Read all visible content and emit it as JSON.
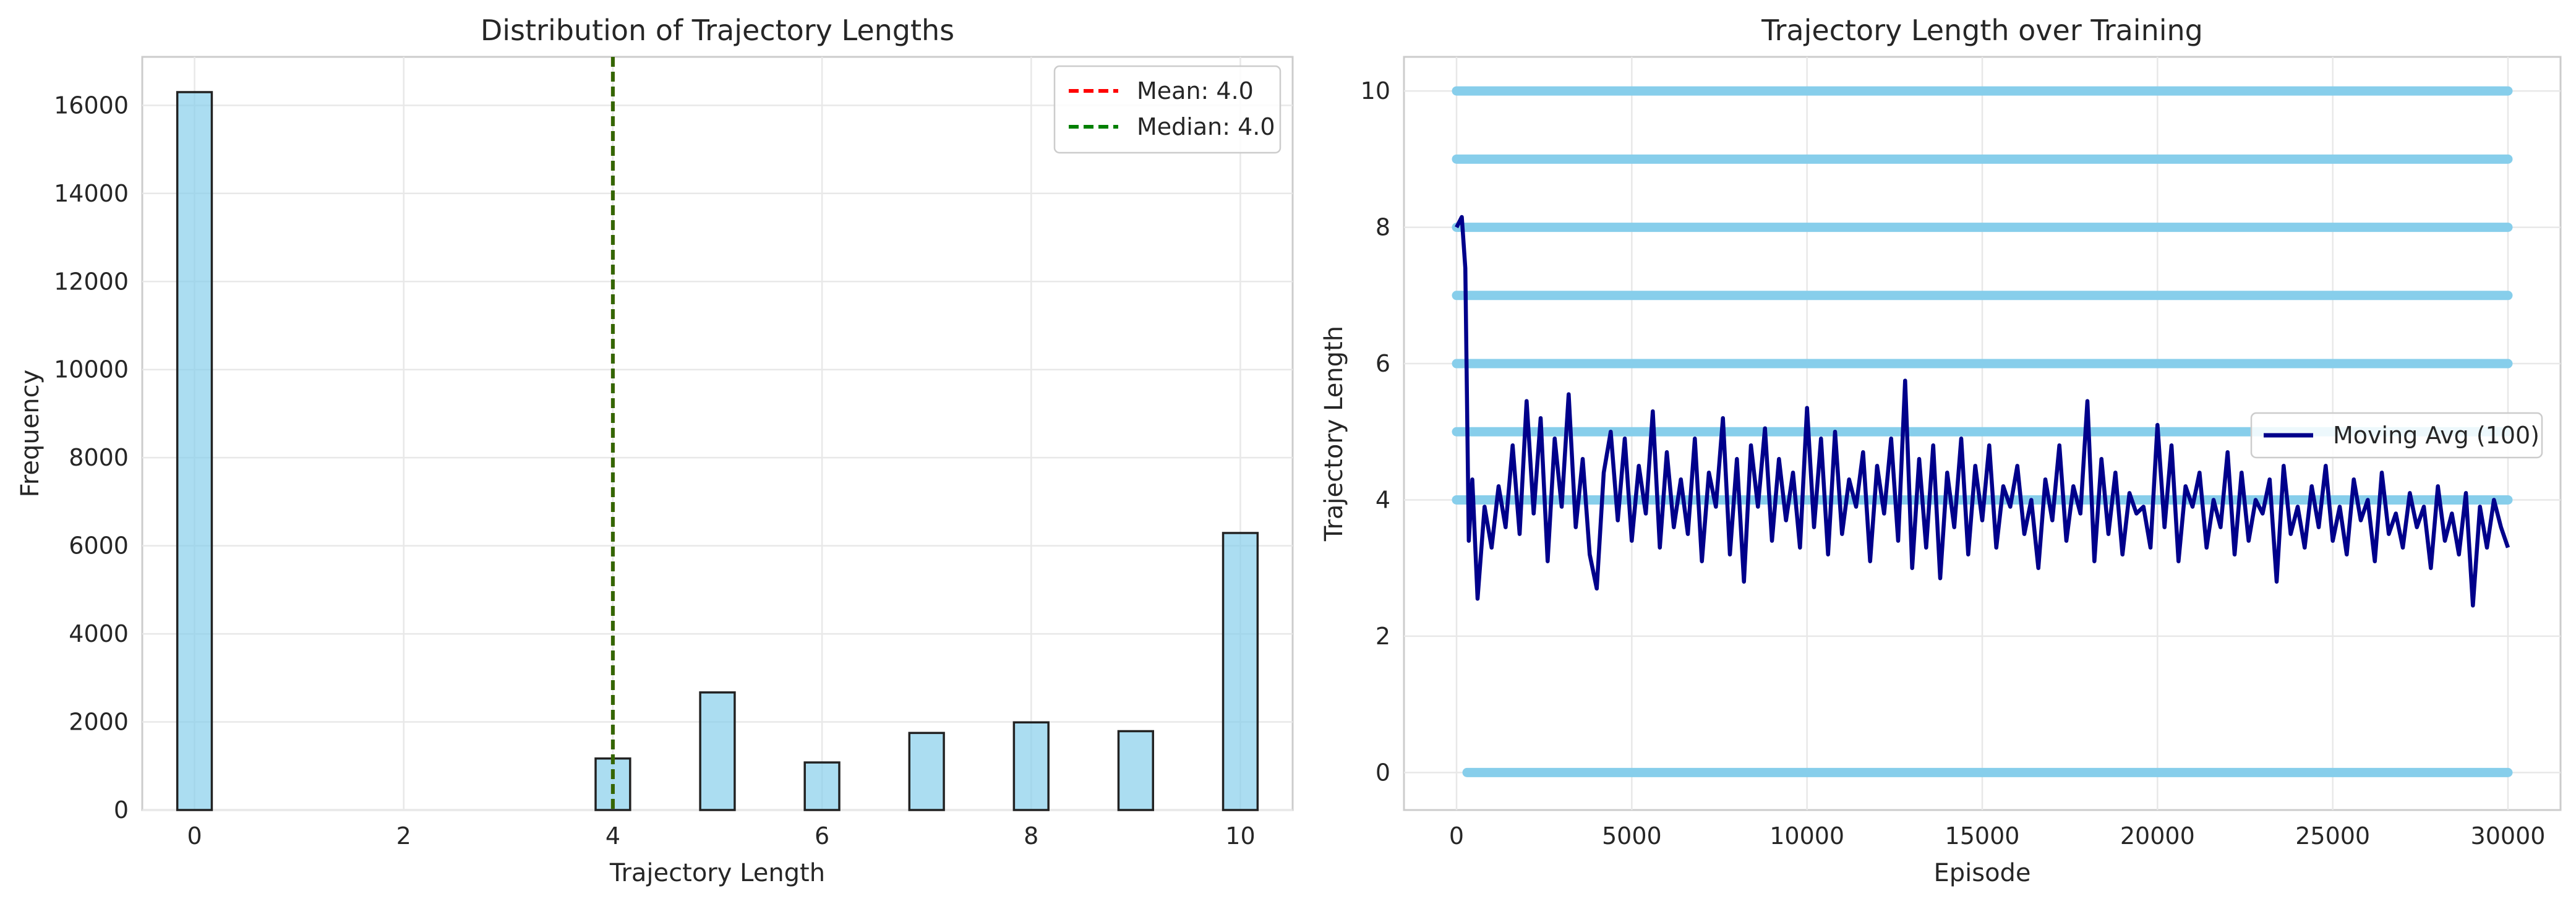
{
  "chart_data": [
    {
      "type": "bar",
      "title": "Distribution of Trajectory Lengths",
      "xlabel": "Trajectory Length",
      "ylabel": "Frequency",
      "xlim": [
        -0.5,
        10.5
      ],
      "ylim": [
        0,
        17100
      ],
      "xticks": [
        0,
        2,
        4,
        6,
        8,
        10
      ],
      "yticks": [
        0,
        2000,
        4000,
        6000,
        8000,
        10000,
        12000,
        14000,
        16000
      ],
      "bar_width": 0.33,
      "bars": [
        {
          "x": 0,
          "value": 16300
        },
        {
          "x": 4,
          "value": 1170
        },
        {
          "x": 5,
          "value": 2670
        },
        {
          "x": 6,
          "value": 1080
        },
        {
          "x": 7,
          "value": 1750
        },
        {
          "x": 8,
          "value": 1990
        },
        {
          "x": 9,
          "value": 1790
        },
        {
          "x": 10,
          "value": 6290
        }
      ],
      "bar_color": "#87ceeb",
      "reference_lines": [
        {
          "name": "Mean: 4.0",
          "x": 4.0,
          "color": "#ff0000",
          "style": "dashed"
        },
        {
          "name": "Median: 4.0",
          "x": 4.0,
          "color": "#008000",
          "style": "dashed"
        }
      ],
      "grid": true,
      "legend": "top-right"
    },
    {
      "type": "scatter",
      "title": "Trajectory Length over Training",
      "xlabel": "Episode",
      "ylabel": "Trajectory Length",
      "xlim": [
        -1500,
        31500
      ],
      "ylim": [
        -0.55,
        10.5
      ],
      "xticks": [
        0,
        5000,
        10000,
        15000,
        20000,
        25000,
        30000
      ],
      "yticks": [
        0,
        2,
        4,
        6,
        8,
        10
      ],
      "scatter_color": "#87ceeb",
      "scatter_levels": [
        {
          "y": 0,
          "x_start": 300,
          "x_end": 30000
        },
        {
          "y": 4,
          "x_start": 0,
          "x_end": 30000
        },
        {
          "y": 5,
          "x_start": 0,
          "x_end": 30000
        },
        {
          "y": 6,
          "x_start": 0,
          "x_end": 30000
        },
        {
          "y": 7,
          "x_start": 0,
          "x_end": 30000
        },
        {
          "y": 8,
          "x_start": 0,
          "x_end": 30000
        },
        {
          "y": 9,
          "x_start": 0,
          "x_end": 30000
        },
        {
          "y": 10,
          "x_start": 0,
          "x_end": 30000
        }
      ],
      "series": [
        {
          "name": "Moving Avg (100)",
          "color": "#00008b",
          "x": [
            0,
            150,
            250,
            350,
            450,
            600,
            800,
            1000,
            1200,
            1400,
            1600,
            1800,
            2000,
            2200,
            2400,
            2600,
            2800,
            3000,
            3200,
            3400,
            3600,
            3800,
            4000,
            4200,
            4400,
            4600,
            4800,
            5000,
            5200,
            5400,
            5600,
            5800,
            6000,
            6200,
            6400,
            6600,
            6800,
            7000,
            7200,
            7400,
            7600,
            7800,
            8000,
            8200,
            8400,
            8600,
            8800,
            9000,
            9200,
            9400,
            9600,
            9800,
            10000,
            10200,
            10400,
            10600,
            10800,
            11000,
            11200,
            11400,
            11600,
            11800,
            12000,
            12200,
            12400,
            12600,
            12800,
            13000,
            13200,
            13400,
            13600,
            13800,
            14000,
            14200,
            14400,
            14600,
            14800,
            15000,
            15200,
            15400,
            15600,
            15800,
            16000,
            16200,
            16400,
            16600,
            16800,
            17000,
            17200,
            17400,
            17600,
            17800,
            18000,
            18200,
            18400,
            18600,
            18800,
            19000,
            19200,
            19400,
            19600,
            19800,
            20000,
            20200,
            20400,
            20600,
            20800,
            21000,
            21200,
            21400,
            21600,
            21800,
            22000,
            22200,
            22400,
            22600,
            22800,
            23000,
            23200,
            23400,
            23600,
            23800,
            24000,
            24200,
            24400,
            24600,
            24800,
            25000,
            25200,
            25400,
            25600,
            25800,
            26000,
            26200,
            26400,
            26600,
            26800,
            27000,
            27200,
            27400,
            27600,
            27800,
            28000,
            28200,
            28400,
            28600,
            28800,
            29000,
            29200,
            29400,
            29600,
            29800,
            30000
          ],
          "y": [
            8.0,
            8.15,
            7.4,
            3.4,
            4.3,
            2.55,
            3.9,
            3.3,
            4.2,
            3.6,
            4.8,
            3.5,
            5.45,
            3.8,
            5.2,
            3.1,
            4.9,
            3.9,
            5.55,
            3.6,
            4.6,
            3.2,
            2.7,
            4.4,
            5.0,
            3.7,
            4.9,
            3.4,
            4.5,
            3.8,
            5.3,
            3.3,
            4.7,
            3.6,
            4.3,
            3.5,
            4.9,
            3.1,
            4.4,
            3.9,
            5.2,
            3.2,
            4.6,
            2.8,
            4.8,
            3.9,
            5.05,
            3.4,
            4.6,
            3.7,
            4.4,
            3.3,
            5.35,
            3.6,
            4.9,
            3.2,
            5.0,
            3.5,
            4.3,
            3.9,
            4.7,
            3.1,
            4.5,
            3.8,
            4.9,
            3.4,
            5.75,
            3.0,
            4.6,
            3.3,
            4.8,
            2.85,
            4.4,
            3.6,
            4.9,
            3.2,
            4.5,
            3.7,
            4.8,
            3.3,
            4.2,
            3.9,
            4.5,
            3.5,
            4.0,
            3.0,
            4.3,
            3.7,
            4.8,
            3.4,
            4.2,
            3.8,
            5.45,
            3.1,
            4.6,
            3.5,
            4.4,
            3.2,
            4.1,
            3.8,
            3.9,
            3.3,
            5.1,
            3.6,
            4.8,
            3.1,
            4.2,
            3.9,
            4.4,
            3.3,
            4.0,
            3.6,
            4.7,
            3.2,
            4.4,
            3.4,
            4.0,
            3.8,
            4.3,
            2.8,
            4.5,
            3.5,
            3.9,
            3.3,
            4.2,
            3.6,
            4.5,
            3.4,
            3.9,
            3.2,
            4.3,
            3.7,
            4.0,
            3.1,
            4.4,
            3.5,
            3.8,
            3.3,
            4.1,
            3.6,
            3.9,
            3.0,
            4.2,
            3.4,
            3.8,
            3.2,
            4.1,
            2.45,
            3.9,
            3.3,
            4.0,
            3.6,
            3.3
          ]
        }
      ],
      "grid": true,
      "legend": "center-right"
    }
  ]
}
